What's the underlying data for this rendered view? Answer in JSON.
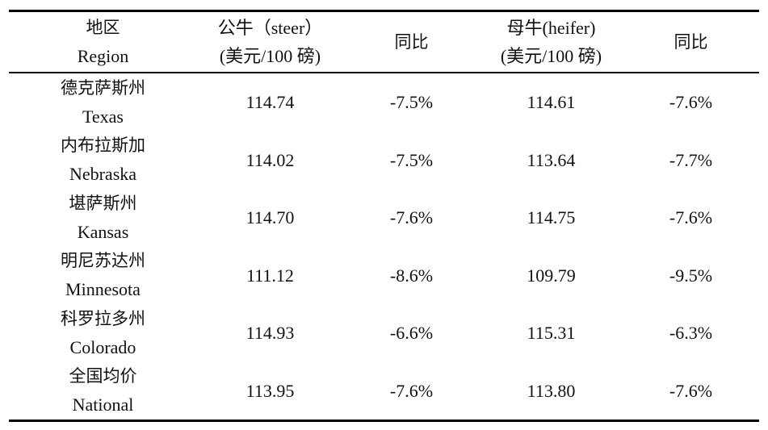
{
  "table": {
    "headers": {
      "region": {
        "zh": "地区",
        "en": "Region"
      },
      "steer": {
        "line1": "公牛（steer）",
        "line2": "(美元/100 磅)"
      },
      "steer_yoy": "同比",
      "heifer": {
        "line1": "母牛(heifer)",
        "line2": "(美元/100 磅)"
      },
      "heifer_yoy": "同比"
    },
    "rows": [
      {
        "region_zh": "德克萨斯州",
        "region_en": "Texas",
        "steer": "114.74",
        "steer_yoy": "-7.5%",
        "heifer": "114.61",
        "heifer_yoy": "-7.6%"
      },
      {
        "region_zh": "内布拉斯加",
        "region_en": "Nebraska",
        "steer": "114.02",
        "steer_yoy": "-7.5%",
        "heifer": "113.64",
        "heifer_yoy": "-7.7%"
      },
      {
        "region_zh": "堪萨斯州",
        "region_en": "Kansas",
        "steer": "114.70",
        "steer_yoy": "-7.6%",
        "heifer": "114.75",
        "heifer_yoy": "-7.6%"
      },
      {
        "region_zh": "明尼苏达州",
        "region_en": "Minnesota",
        "steer": "111.12",
        "steer_yoy": "-8.6%",
        "heifer": "109.79",
        "heifer_yoy": "-9.5%"
      },
      {
        "region_zh": "科罗拉多州",
        "region_en": "Colorado",
        "steer": "114.93",
        "steer_yoy": "-6.6%",
        "heifer": "115.31",
        "heifer_yoy": "-6.3%"
      },
      {
        "region_zh": "全国均价",
        "region_en": "National",
        "steer": "113.95",
        "steer_yoy": "-7.6%",
        "heifer": "113.80",
        "heifer_yoy": "-7.6%"
      }
    ]
  }
}
